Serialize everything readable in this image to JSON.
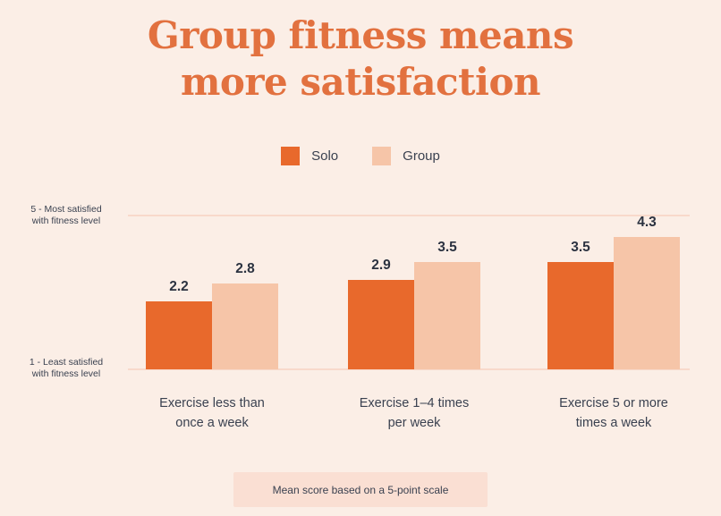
{
  "header": {
    "title_line1": "Group fitness means",
    "title_line2": "more satisfaction"
  },
  "colors": {
    "background": "#FBEEE6",
    "title": "#E2713F",
    "solo_bar": "#E8692C",
    "group_bar": "#F6C5A8",
    "gridline": "#F8D9CB",
    "text_dark": "#3A4150",
    "value_label": "#2B3240",
    "footnote_bg": "#FADFD3"
  },
  "chart_data": {
    "type": "bar",
    "title": "Group fitness means more satisfaction",
    "categories": [
      "Exercise less than\nonce a week",
      "Exercise 1–4 times\nper week",
      "Exercise 5 or more\ntimes a week"
    ],
    "series": [
      {
        "name": "Solo",
        "color": "#E8692C",
        "values": [
          2.2,
          2.9,
          3.5
        ]
      },
      {
        "name": "Group",
        "color": "#F6C5A8",
        "values": [
          2.8,
          3.5,
          4.3
        ]
      }
    ],
    "value_axis": {
      "min": 1,
      "max": 5,
      "max_label": "5 - Most satisfied\nwith fitness level",
      "min_label": "1 - Least satisfied\nwith fitness level"
    },
    "value_labels_shown": true,
    "grid": "two horizontal reference lines (top and baseline)",
    "legend_position": "top-center",
    "footnote": "Mean score based on a 5-point scale"
  }
}
